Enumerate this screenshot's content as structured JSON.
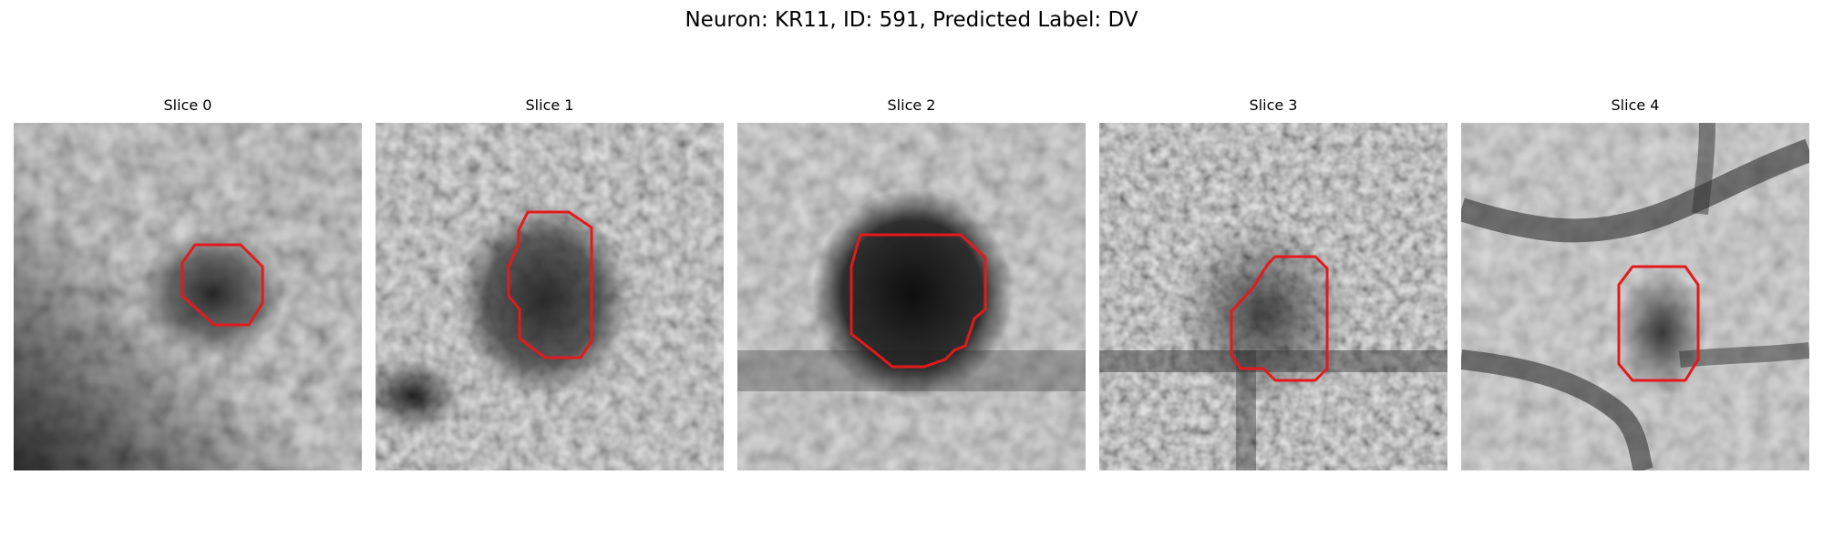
{
  "figure": {
    "title": "Neuron: KR11, ID: 591, Predicted Label: DV"
  },
  "slices": [
    {
      "label": "Slice 0"
    },
    {
      "label": "Slice 1"
    },
    {
      "label": "Slice 2"
    },
    {
      "label": "Slice 3"
    },
    {
      "label": "Slice 4"
    }
  ],
  "colors": {
    "outline": "#e31a1c",
    "background": "#ffffff"
  }
}
